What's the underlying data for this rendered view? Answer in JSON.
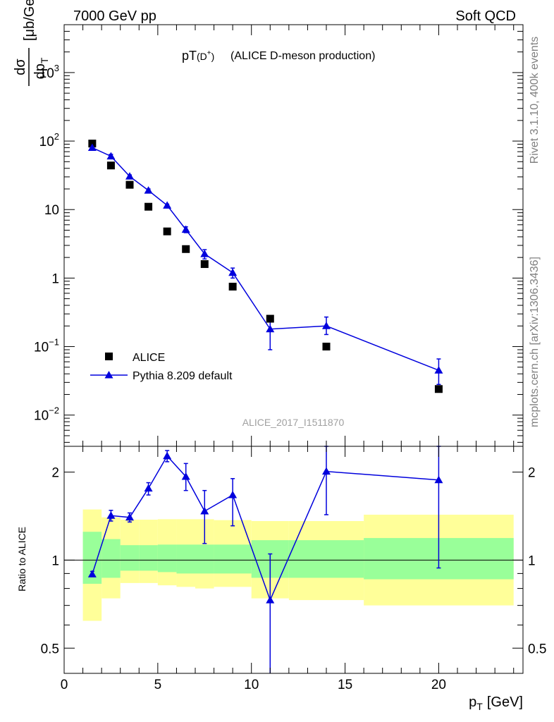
{
  "header": {
    "left": "7000 GeV pp",
    "right": "Soft QCD"
  },
  "side": {
    "rivet": "Rivet 3.1.10,  400k events",
    "mcplots": "mcplots.cern.ch [arXiv:1306.3436]"
  },
  "chart_data": [
    {
      "type": "scatter",
      "title_main": "pT",
      "title_sub": "(D",
      "title_sup": "+",
      "title_end": ")",
      "title_rest": "(ALICE D-meson production)",
      "ylabel_frac_num": "dσ",
      "ylabel_frac_den": "dp",
      "ylabel_sub": "T",
      "ylabel_unit": "[μb/GeV]",
      "watermark": "ALICE_2017_I1511870",
      "yscale": "log",
      "xlim": [
        0,
        24.5
      ],
      "ylim": [
        0.0035,
        5000
      ],
      "y_ticks": [
        {
          "value": 1000,
          "base": "10",
          "exp": "3"
        },
        {
          "value": 100,
          "base": "10",
          "exp": "2"
        },
        {
          "value": 10,
          "base": "10",
          "exp": ""
        },
        {
          "value": 1,
          "base": "1",
          "exp": ""
        },
        {
          "value": 0.1,
          "base": "10",
          "exp": "−1"
        },
        {
          "value": 0.01,
          "base": "10",
          "exp": "−2"
        }
      ],
      "legend": [
        {
          "label": "ALICE",
          "marker": "square",
          "color": "#000000"
        },
        {
          "label": "Pythia 8.209 default",
          "marker": "triangle",
          "color": "#0000dd"
        }
      ],
      "series": [
        {
          "name": "ALICE",
          "x": [
            1.5,
            2.5,
            3.5,
            4.5,
            5.5,
            6.5,
            7.5,
            9,
            11,
            14,
            20
          ],
          "y": [
            92,
            44,
            23,
            11,
            4.8,
            2.65,
            1.6,
            0.75,
            0.255,
            0.1,
            0.024
          ]
        },
        {
          "name": "Pythia 8.209 default",
          "x": [
            1.5,
            2.5,
            3.5,
            4.5,
            5.5,
            6.5,
            7.5,
            9,
            11,
            14,
            20
          ],
          "y": [
            80,
            60,
            30.5,
            19,
            11.5,
            5.1,
            2.25,
            1.2,
            0.18,
            0.2,
            0.045
          ],
          "err_lo": [
            76,
            56,
            29,
            18,
            11,
            4.6,
            1.9,
            1.0,
            0.09,
            0.15,
            0.028
          ],
          "err_hi": [
            84,
            64,
            32,
            20,
            12,
            5.6,
            2.6,
            1.4,
            0.26,
            0.27,
            0.066
          ]
        }
      ]
    },
    {
      "type": "scatter",
      "ylabel": "Ratio to ALICE",
      "xlabel_main": "p",
      "xlabel_sub": "T",
      "xlabel_unit": "[GeV]",
      "yscale": "log",
      "xlim": [
        0,
        24.5
      ],
      "ylim": [
        0.41,
        2.45
      ],
      "x_ticks": [
        "0",
        "5",
        "10",
        "15",
        "20"
      ],
      "x_tick_values": [
        0,
        5,
        10,
        15,
        20
      ],
      "y_ticks": [
        "0.5",
        "1",
        "2"
      ],
      "y_tick_values": [
        0.5,
        1,
        2
      ],
      "reference_line": 1,
      "bands": [
        {
          "x0": 1,
          "x1": 2,
          "yellow": [
            0.62,
            1.49
          ],
          "green": [
            0.83,
            1.25
          ]
        },
        {
          "x0": 2,
          "x1": 3,
          "yellow": [
            0.74,
            1.4
          ],
          "green": [
            0.87,
            1.18
          ]
        },
        {
          "x0": 3,
          "x1": 4,
          "yellow": [
            0.835,
            1.375
          ],
          "green": [
            0.92,
            1.125
          ]
        },
        {
          "x0": 4,
          "x1": 5,
          "yellow": [
            0.835,
            1.375
          ],
          "green": [
            0.92,
            1.125
          ]
        },
        {
          "x0": 5,
          "x1": 6,
          "yellow": [
            0.82,
            1.38
          ],
          "green": [
            0.91,
            1.13
          ]
        },
        {
          "x0": 6,
          "x1": 7,
          "yellow": [
            0.81,
            1.38
          ],
          "green": [
            0.9,
            1.13
          ]
        },
        {
          "x0": 7,
          "x1": 8,
          "yellow": [
            0.8,
            1.38
          ],
          "green": [
            0.9,
            1.13
          ]
        },
        {
          "x0": 8,
          "x1": 10,
          "yellow": [
            0.81,
            1.37
          ],
          "green": [
            0.9,
            1.13
          ]
        },
        {
          "x0": 10,
          "x1": 12,
          "yellow": [
            0.74,
            1.36
          ],
          "green": [
            0.87,
            1.17
          ]
        },
        {
          "x0": 12,
          "x1": 16,
          "yellow": [
            0.73,
            1.36
          ],
          "green": [
            0.87,
            1.17
          ]
        },
        {
          "x0": 16,
          "x1": 24,
          "yellow": [
            0.7,
            1.43
          ],
          "green": [
            0.86,
            1.19
          ]
        }
      ],
      "series": [
        {
          "name": "Pythia 8.209 default",
          "x": [
            1.5,
            2.5,
            3.5,
            4.5,
            5.5,
            6.5,
            7.5,
            9,
            11,
            14,
            20
          ],
          "y": [
            0.895,
            1.42,
            1.4,
            1.76,
            2.27,
            1.93,
            1.47,
            1.67,
            0.73,
            2.01,
            1.88
          ],
          "err_lo": [
            0.88,
            1.36,
            1.35,
            1.67,
            2.17,
            1.73,
            1.14,
            1.31,
            0.37,
            1.43,
            0.94
          ],
          "err_hi": [
            0.915,
            1.48,
            1.45,
            1.84,
            2.37,
            2.14,
            1.73,
            1.9,
            1.05,
            2.45,
            2.45
          ]
        }
      ]
    }
  ]
}
